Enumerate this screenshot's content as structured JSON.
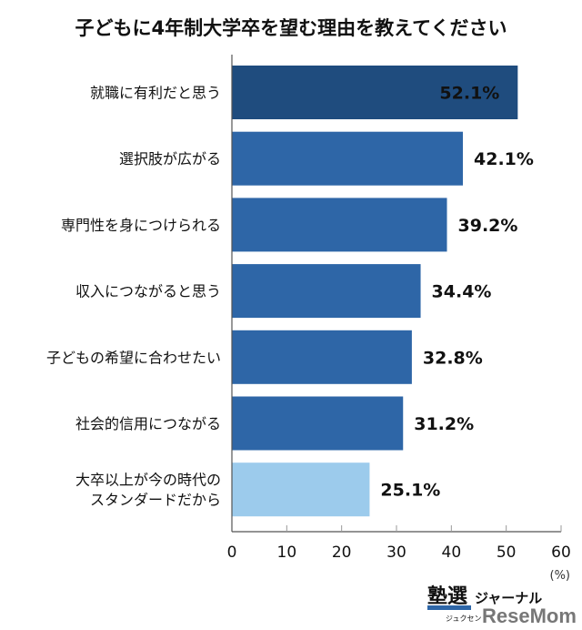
{
  "chart_data": {
    "type": "bar",
    "orientation": "horizontal",
    "title": "子どもに4年制大学卒を望む理由を教えてください",
    "categories": [
      [
        "就職に有利だと思う"
      ],
      [
        "選択肢が広がる"
      ],
      [
        "専門性を身につけられる"
      ],
      [
        "収入につながると思う"
      ],
      [
        "子どもの希望に合わせたい"
      ],
      [
        "社会的信用につながる"
      ],
      [
        "大卒以上が今の時代の",
        "スタンダードだから"
      ]
    ],
    "values": [
      52.1,
      42.1,
      39.2,
      34.4,
      32.8,
      31.2,
      25.1
    ],
    "value_labels": [
      "52.1%",
      "42.1%",
      "39.2%",
      "34.4%",
      "32.8%",
      "31.2%",
      "25.1%"
    ],
    "bar_colors": [
      "#1f4c7e",
      "#2e66a7",
      "#2e66a7",
      "#2e66a7",
      "#2e66a7",
      "#2e66a7",
      "#9ccbec"
    ],
    "xlim": [
      0,
      60
    ],
    "ticks": [
      "0",
      "10",
      "20",
      "30",
      "40",
      "50",
      "60"
    ],
    "unit_label": "(%)",
    "grid": false
  },
  "branding": {
    "logo1": "塾選ジャーナル",
    "logo1_sub": "ジュクセン",
    "logo2": "ReseMom"
  }
}
